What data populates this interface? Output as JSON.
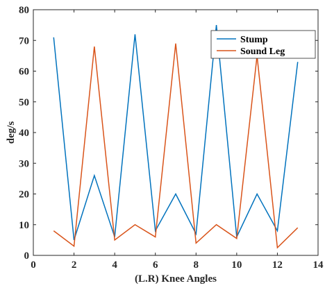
{
  "chart_data": {
    "type": "line",
    "title": "",
    "xlabel": "(L.R) Knee Angles",
    "ylabel": "deg/s",
    "xlim": [
      0,
      14
    ],
    "ylim": [
      0,
      80
    ],
    "xticks": [
      "0",
      "2",
      "4",
      "6",
      "8",
      "10",
      "12",
      "14"
    ],
    "yticks": [
      "0",
      "10",
      "20",
      "30",
      "40",
      "50",
      "60",
      "70",
      "80"
    ],
    "grid": false,
    "legend_position": "top-right",
    "x": [
      1,
      2,
      3,
      4,
      5,
      6,
      7,
      8,
      9,
      10,
      11,
      12,
      13
    ],
    "series": [
      {
        "name": "Stump",
        "color": "#0072BD",
        "values": [
          71,
          5,
          26,
          6,
          72,
          8,
          20,
          7,
          75,
          6,
          20,
          8,
          63
        ]
      },
      {
        "name": "Sound Leg",
        "color": "#D95319",
        "values": [
          8,
          3,
          68,
          5,
          10,
          6,
          69,
          4,
          10,
          5.5,
          65,
          2.5,
          9
        ]
      }
    ]
  }
}
